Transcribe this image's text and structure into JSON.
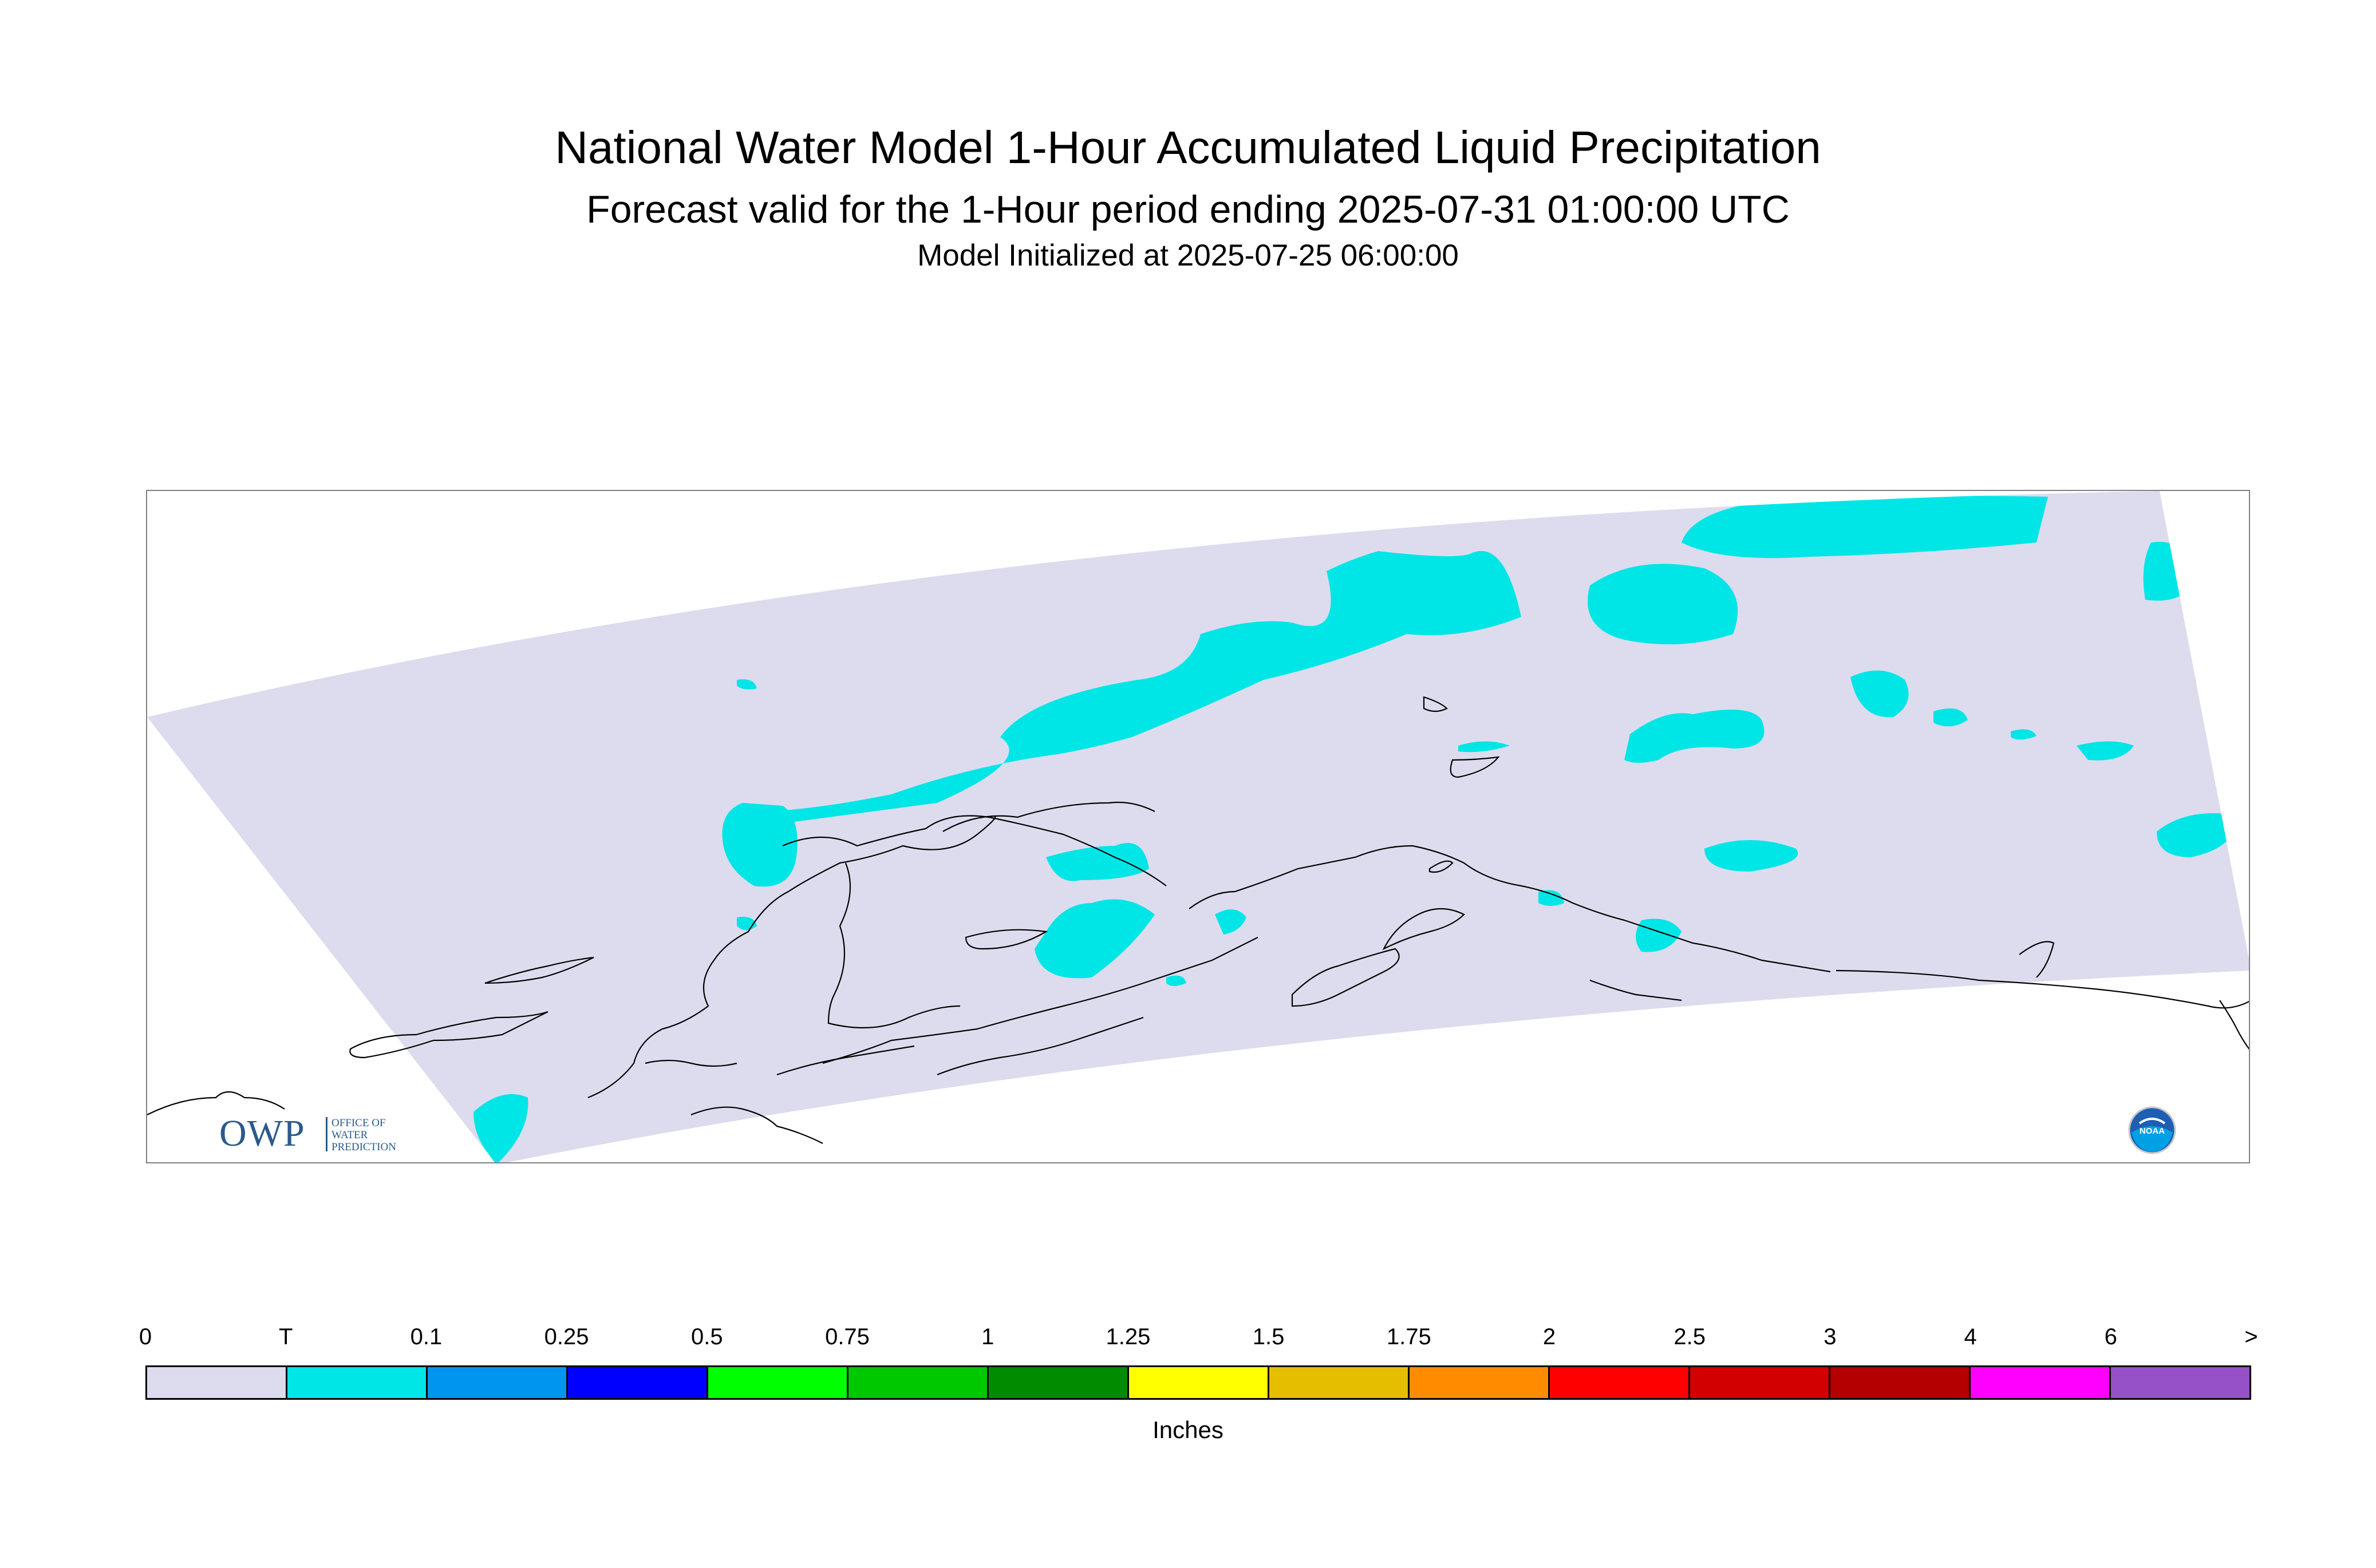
{
  "header": {
    "title": "National Water Model 1-Hour Accumulated Liquid Precipitation",
    "subtitle": "Forecast valid for the 1-Hour period ending 2025-07-31 01:00:00 UTC",
    "initialized": "Model Initialized at 2025-07-25 06:00:00"
  },
  "map": {
    "background_color": "#dcdcee",
    "precip_color": "#00e6e6",
    "coastline_color": "#000000"
  },
  "legend": {
    "tick_labels": [
      "0",
      "T",
      "0.1",
      "0.25",
      "0.5",
      "0.75",
      "1",
      "1.25",
      "1.5",
      "1.75",
      "2",
      "2.5",
      "3",
      "4",
      "6",
      ">"
    ],
    "colors": [
      "#dcdcee",
      "#00e6e6",
      "#0096f0",
      "#0000ff",
      "#00ff00",
      "#00c800",
      "#008c00",
      "#ffff00",
      "#e6be00",
      "#ff8c00",
      "#ff0000",
      "#d20000",
      "#b40000",
      "#ff00ff",
      "#9650c8"
    ],
    "units": "Inches"
  },
  "logos": {
    "owp": {
      "letters": "OWP",
      "lines": [
        "OFFICE OF",
        "WATER",
        "PREDICTION"
      ],
      "icon": "owp-logo"
    },
    "noaa": {
      "text": "NOAA",
      "icon": "noaa-logo"
    }
  }
}
